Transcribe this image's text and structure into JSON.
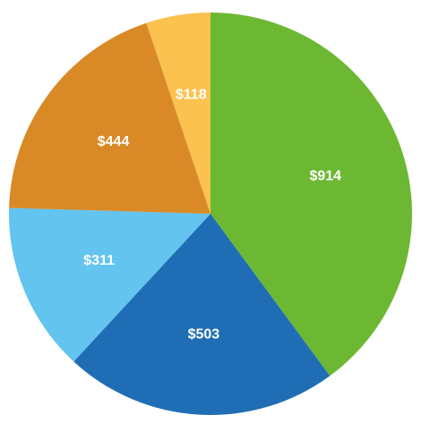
{
  "chart_data": {
    "type": "pie",
    "title": "",
    "start_angle_deg": -90,
    "direction": "clockwise",
    "slices": [
      {
        "label": "$914",
        "value": 914,
        "color": "#6db832"
      },
      {
        "label": "$503",
        "value": 503,
        "color": "#1f6eb5"
      },
      {
        "label": "$311",
        "value": 311,
        "color": "#62c4ef"
      },
      {
        "label": "$444",
        "value": 444,
        "color": "#d98a27"
      },
      {
        "label": "$118",
        "value": 118,
        "color": "#fbc250"
      }
    ]
  }
}
